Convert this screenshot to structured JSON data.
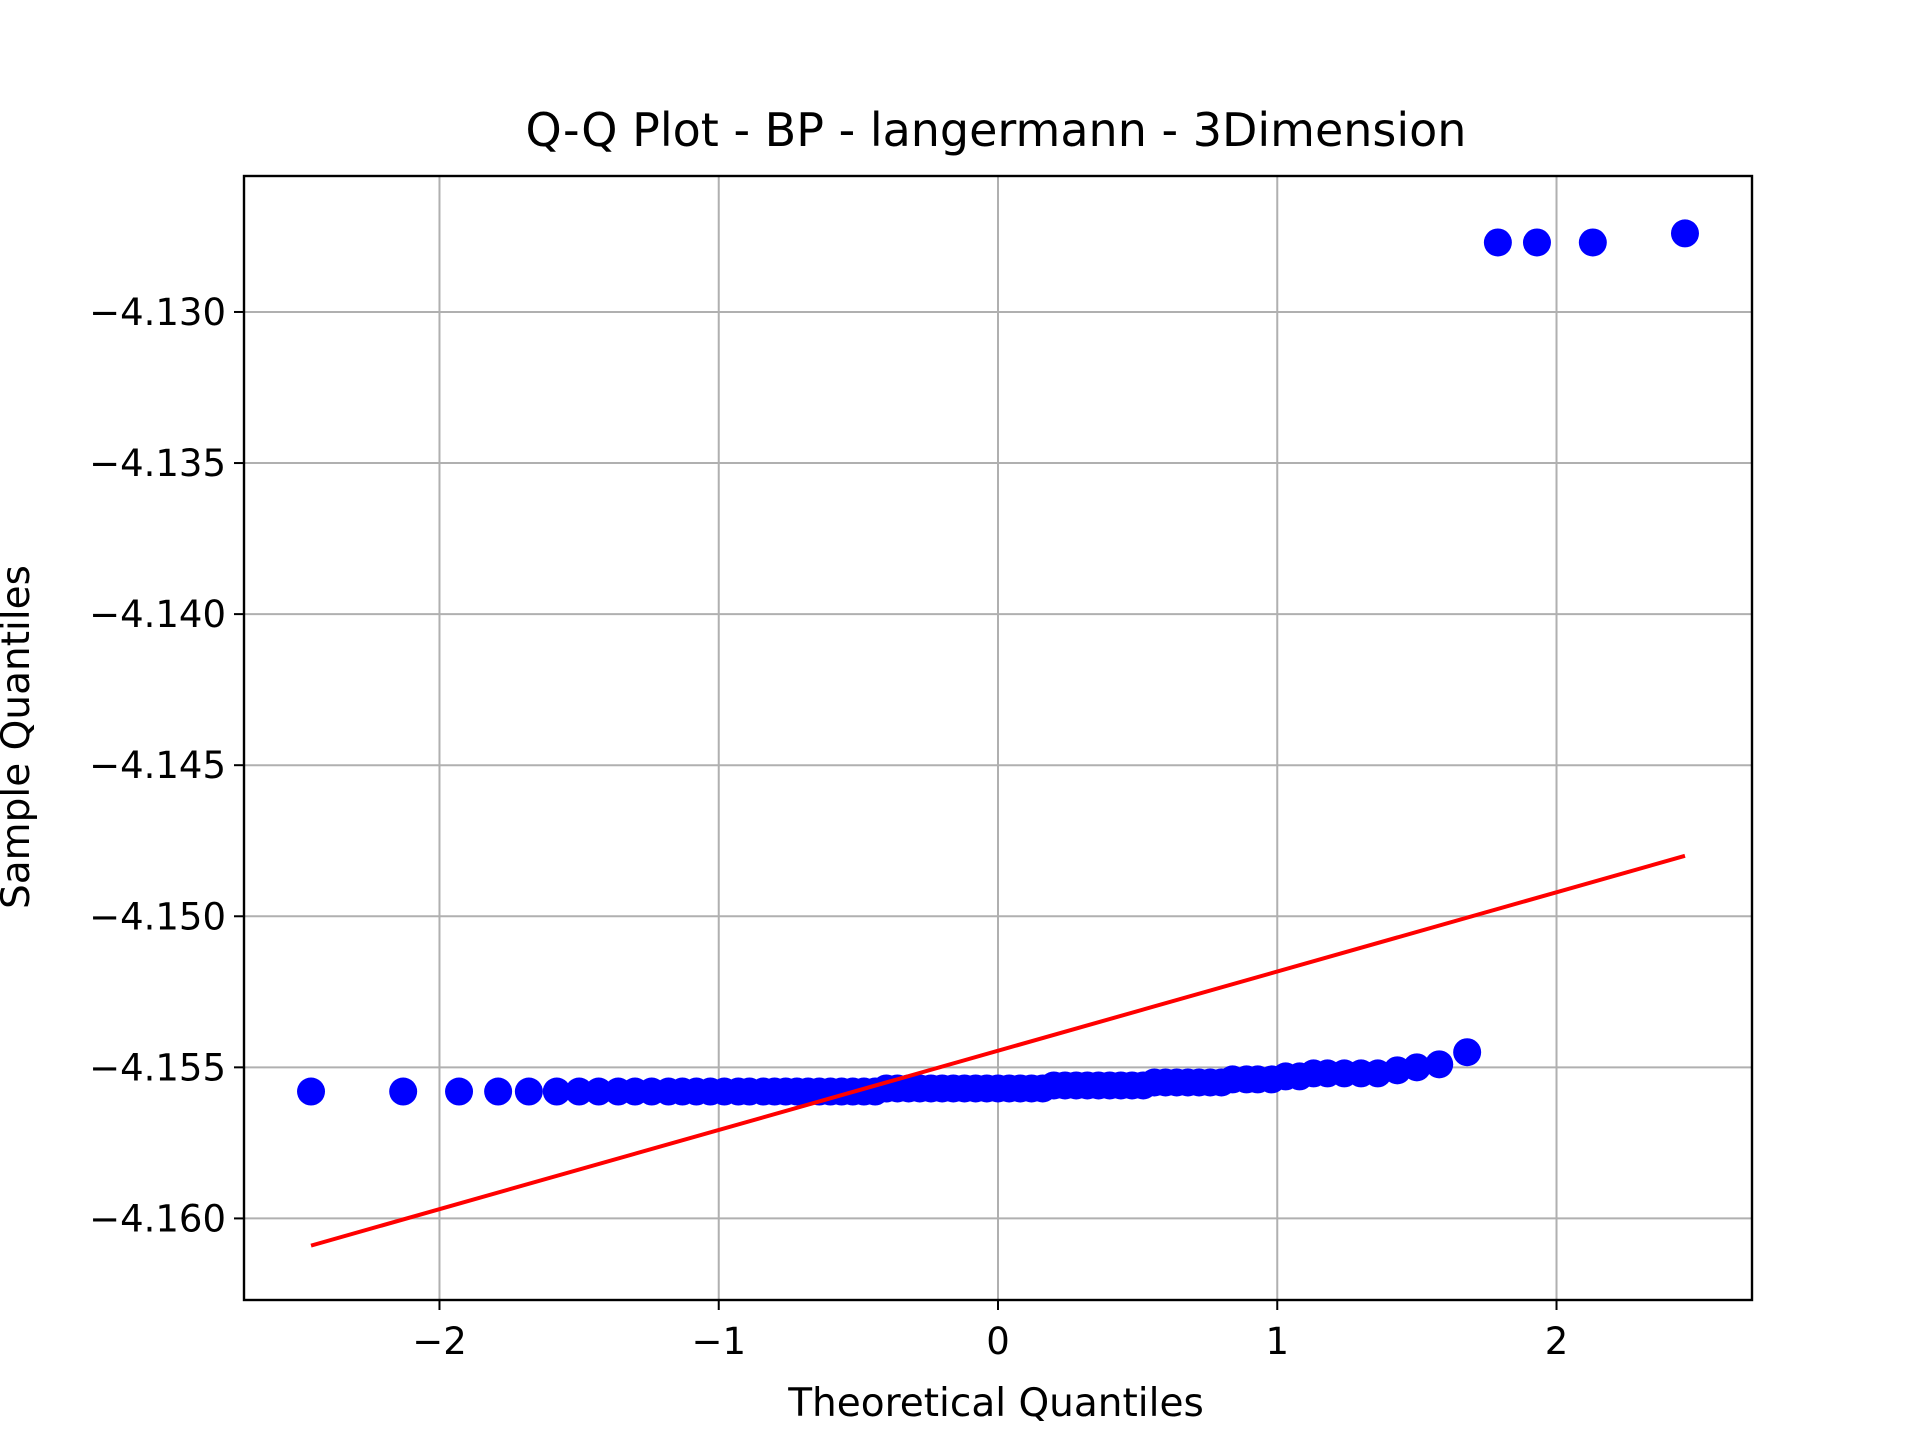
{
  "chart_data": {
    "type": "scatter",
    "title": "Q-Q Plot - BP - langermann - 3Dimension",
    "xlabel": "Theoretical Quantiles",
    "ylabel": "Sample Quantiles",
    "xlim": [
      -2.7,
      2.7
    ],
    "ylim": [
      -4.1627,
      -4.1255
    ],
    "x_ticks": [
      -2,
      -1,
      0,
      1,
      2
    ],
    "x_tick_labels": [
      "−2",
      "−1",
      "0",
      "1",
      "2"
    ],
    "y_ticks": [
      -4.13,
      -4.135,
      -4.14,
      -4.145,
      -4.15,
      -4.155,
      -4.16
    ],
    "y_tick_labels": [
      "−4.130",
      "−4.135",
      "−4.140",
      "−4.145",
      "−4.150",
      "−4.155",
      "−4.160"
    ],
    "grid": true,
    "series": [
      {
        "kind": "points",
        "color": "#0000ff",
        "x": [
          -2.46,
          -2.13,
          -1.93,
          -1.79,
          -1.68,
          -1.58,
          -1.5,
          -1.43,
          -1.36,
          -1.3,
          -1.24,
          -1.18,
          -1.13,
          -1.08,
          -1.03,
          -0.98,
          -0.93,
          -0.89,
          -0.84,
          -0.8,
          -0.76,
          -0.72,
          -0.68,
          -0.64,
          -0.6,
          -0.56,
          -0.52,
          -0.48,
          -0.44,
          -0.4,
          -0.36,
          -0.32,
          -0.28,
          -0.24,
          -0.2,
          -0.16,
          -0.12,
          -0.08,
          -0.04,
          0.0,
          0.04,
          0.08,
          0.12,
          0.16,
          0.2,
          0.24,
          0.28,
          0.32,
          0.36,
          0.4,
          0.44,
          0.48,
          0.52,
          0.56,
          0.6,
          0.64,
          0.68,
          0.72,
          0.76,
          0.8,
          0.84,
          0.89,
          0.93,
          0.98,
          1.03,
          1.08,
          1.13,
          1.18,
          1.24,
          1.3,
          1.36,
          1.43,
          1.5,
          1.58,
          1.68,
          1.79,
          1.93,
          2.13,
          2.46
        ],
        "y": [
          -4.1558,
          -4.1558,
          -4.1558,
          -4.1558,
          -4.1558,
          -4.1558,
          -4.1558,
          -4.1558,
          -4.1558,
          -4.1558,
          -4.1558,
          -4.1558,
          -4.1558,
          -4.1558,
          -4.1558,
          -4.1558,
          -4.1558,
          -4.1558,
          -4.1558,
          -4.1558,
          -4.1558,
          -4.1558,
          -4.1558,
          -4.1558,
          -4.1558,
          -4.1558,
          -4.1558,
          -4.1558,
          -4.1558,
          -4.1557,
          -4.1557,
          -4.1557,
          -4.1557,
          -4.1557,
          -4.1557,
          -4.1557,
          -4.1557,
          -4.1557,
          -4.1557,
          -4.1557,
          -4.1557,
          -4.1557,
          -4.1557,
          -4.1557,
          -4.1556,
          -4.1556,
          -4.1556,
          -4.1556,
          -4.1556,
          -4.1556,
          -4.1556,
          -4.1556,
          -4.1556,
          -4.1555,
          -4.1555,
          -4.1555,
          -4.1555,
          -4.1555,
          -4.1555,
          -4.1555,
          -4.1554,
          -4.1554,
          -4.1554,
          -4.1554,
          -4.1553,
          -4.1553,
          -4.1552,
          -4.1552,
          -4.1552,
          -4.1552,
          -4.1552,
          -4.1551,
          -4.155,
          -4.1549,
          -4.1545,
          -4.1277,
          -4.1277,
          -4.1277,
          -4.1274
        ]
      },
      {
        "kind": "reference-line",
        "color": "#ff0000",
        "x": [
          -2.46,
          2.46
        ],
        "y": [
          -4.1609,
          -4.148
        ]
      }
    ]
  }
}
